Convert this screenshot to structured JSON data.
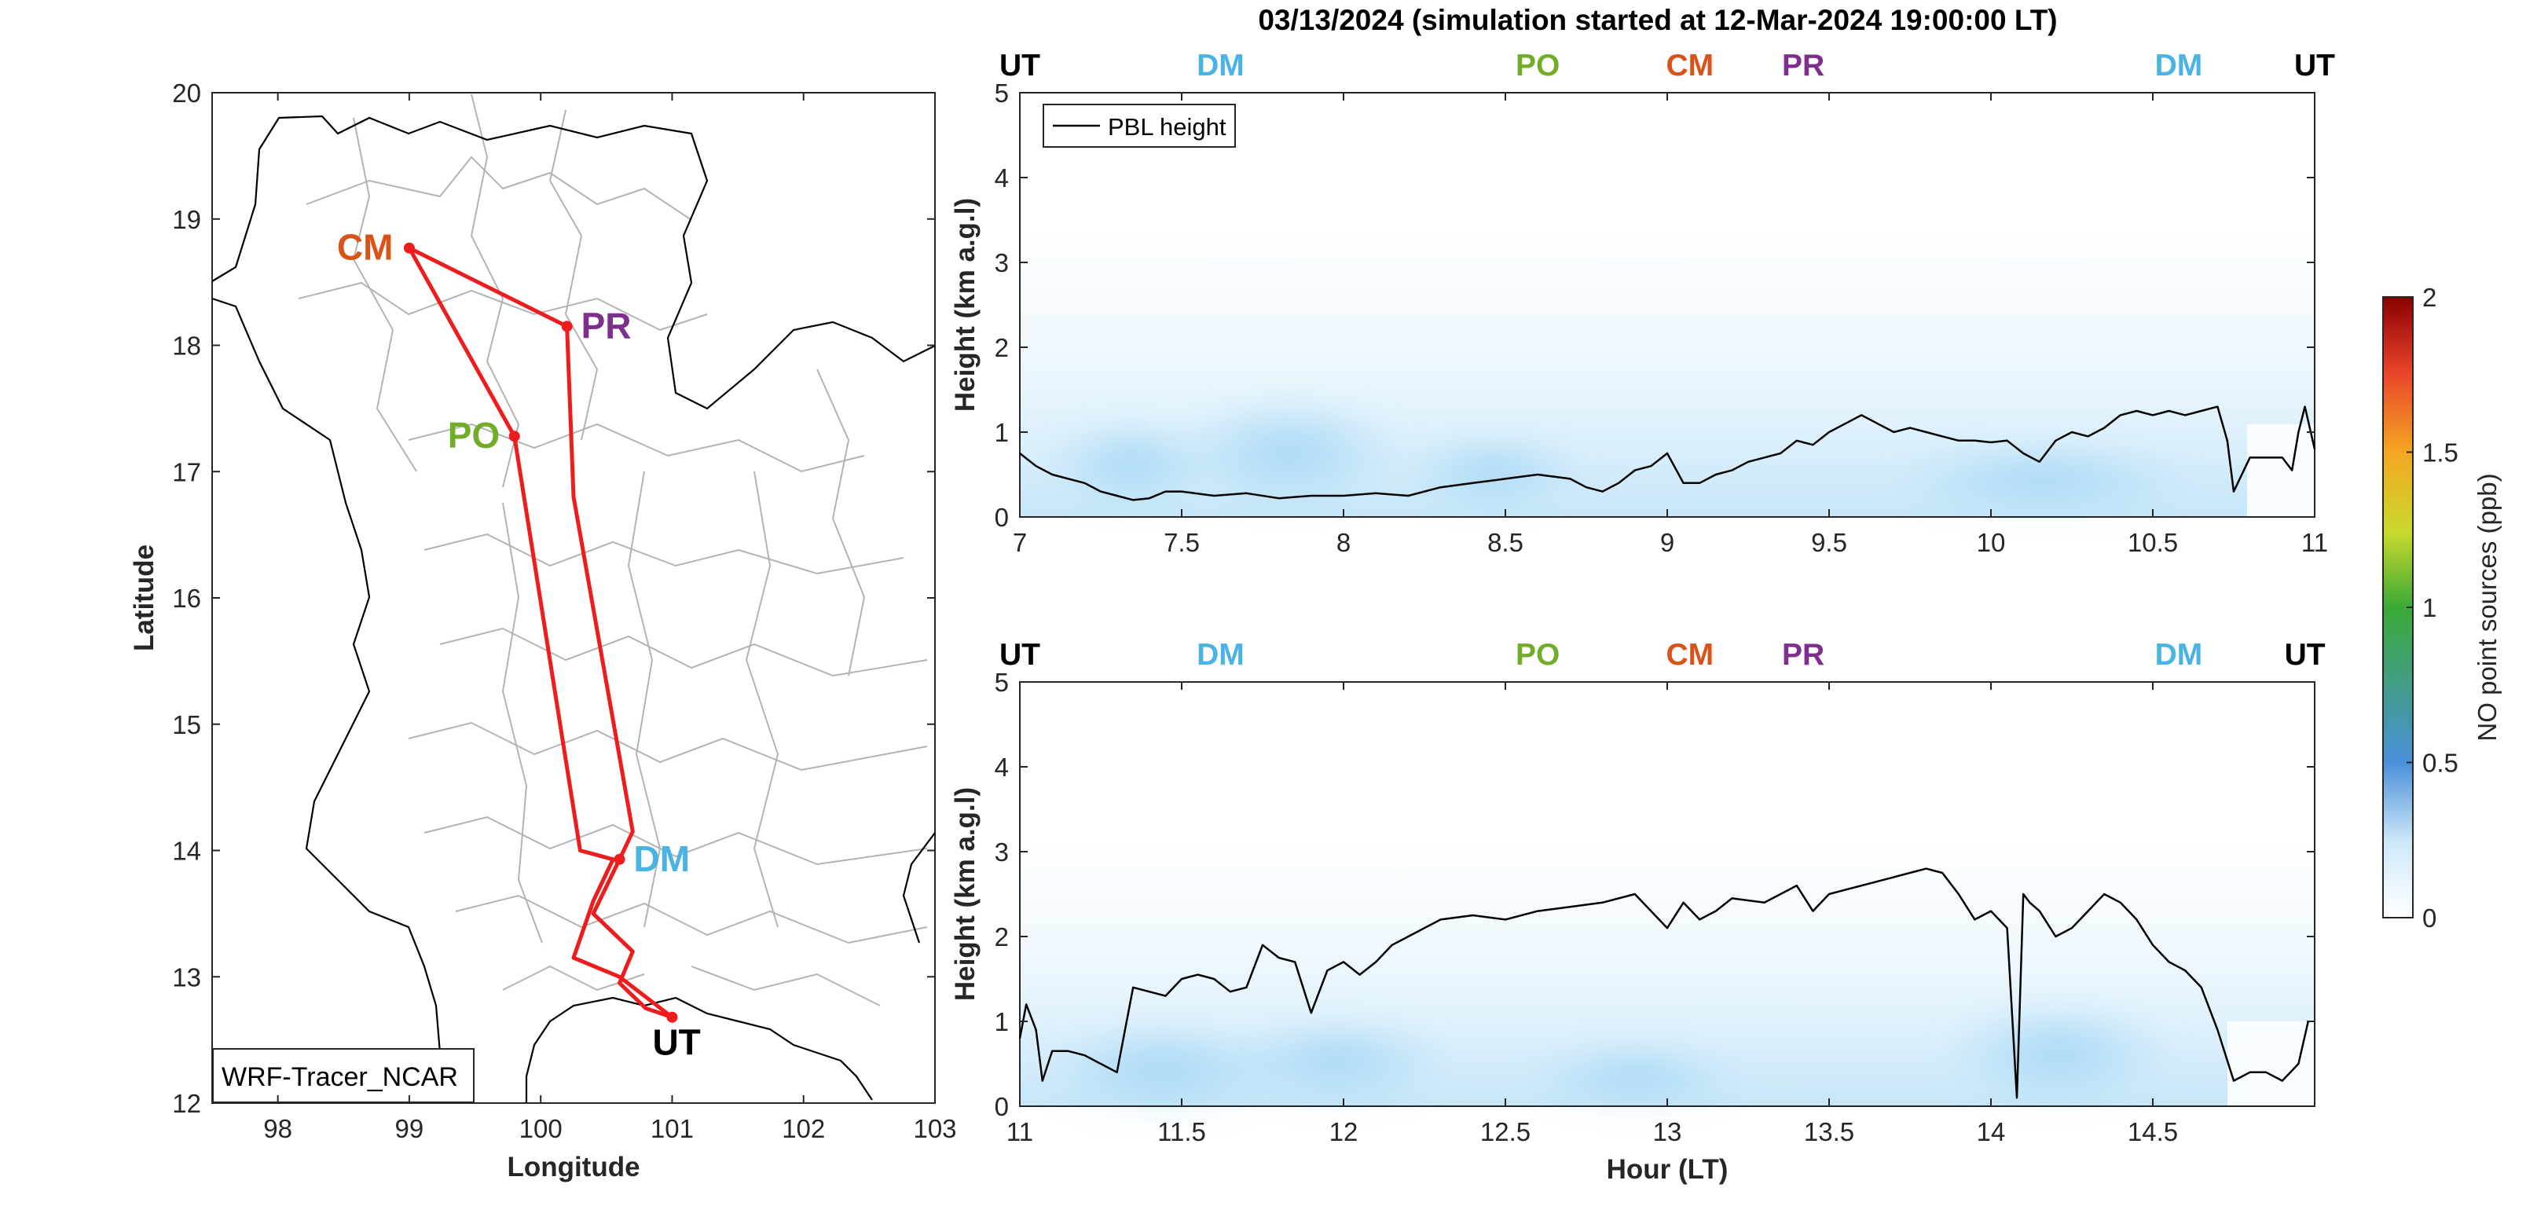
{
  "title": "03/13/2024 (simulation started at 12-Mar-2024 19:00:00 LT)",
  "colors": {
    "route": "#ee1c1c",
    "label": {
      "UT": "#000000",
      "DM": "#4ab3e6",
      "PO": "#72ad2a",
      "CM": "#d95319",
      "PR": "#7e2f8e"
    }
  },
  "map": {
    "xlabel": "Longitude",
    "ylabel": "Latitude",
    "xlim": [
      97.5,
      103
    ],
    "ylim": [
      12,
      20
    ],
    "xticks": [
      98,
      99,
      100,
      101,
      102,
      103
    ],
    "yticks": [
      12,
      13,
      14,
      15,
      16,
      17,
      18,
      19,
      20
    ],
    "model_label": "WRF-Tracer_NCAR",
    "locations": [
      {
        "name": "CM",
        "lon": 99.0,
        "lat": 18.77
      },
      {
        "name": "PR",
        "lon": 100.2,
        "lat": 18.15
      },
      {
        "name": "PO",
        "lon": 99.8,
        "lat": 17.28
      },
      {
        "name": "DM",
        "lon": 100.6,
        "lat": 13.93
      },
      {
        "name": "UT",
        "lon": 101.0,
        "lat": 12.68
      }
    ],
    "route": [
      [
        101.0,
        12.68
      ],
      [
        100.8,
        12.75
      ],
      [
        100.6,
        12.95
      ],
      [
        100.7,
        13.2
      ],
      [
        100.4,
        13.5
      ],
      [
        100.6,
        13.93
      ],
      [
        100.7,
        14.15
      ],
      [
        100.25,
        16.8
      ],
      [
        100.2,
        18.15
      ],
      [
        99.0,
        18.77
      ],
      [
        99.8,
        17.28
      ],
      [
        100.3,
        14.0
      ],
      [
        100.55,
        13.93
      ],
      [
        100.4,
        13.6
      ],
      [
        100.25,
        13.15
      ],
      [
        100.6,
        13.0
      ],
      [
        101.0,
        12.68
      ]
    ]
  },
  "chart_data": [
    {
      "type": "heatmap",
      "xlabel": "",
      "ylabel": "Height (km a.g.l)",
      "xlim": [
        7,
        11
      ],
      "ylim": [
        0,
        5
      ],
      "xticks": [
        "7",
        "7.5",
        "8",
        "8.5",
        "9",
        "9.5",
        "10",
        "10.5",
        "11"
      ],
      "yticks": [
        "0",
        "1",
        "2",
        "3",
        "4",
        "5"
      ],
      "legend": {
        "position": "top-left",
        "entries": [
          "PBL height"
        ]
      },
      "top_labels": [
        {
          "name": "UT",
          "x": 7.0
        },
        {
          "name": "DM",
          "x": 7.62
        },
        {
          "name": "PO",
          "x": 8.6
        },
        {
          "name": "CM",
          "x": 9.07
        },
        {
          "name": "PR",
          "x": 9.42
        },
        {
          "name": "DM",
          "x": 10.58
        },
        {
          "name": "UT",
          "x": 11.0
        }
      ],
      "series": [
        {
          "name": "PBL height",
          "x": [
            7.0,
            7.05,
            7.1,
            7.15,
            7.2,
            7.25,
            7.3,
            7.35,
            7.4,
            7.45,
            7.5,
            7.6,
            7.7,
            7.8,
            7.9,
            8.0,
            8.1,
            8.2,
            8.3,
            8.4,
            8.5,
            8.6,
            8.7,
            8.75,
            8.8,
            8.85,
            8.9,
            8.95,
            9.0,
            9.05,
            9.1,
            9.15,
            9.2,
            9.25,
            9.3,
            9.35,
            9.4,
            9.45,
            9.5,
            9.55,
            9.6,
            9.65,
            9.7,
            9.75,
            9.8,
            9.85,
            9.9,
            9.95,
            10.0,
            10.05,
            10.1,
            10.15,
            10.2,
            10.25,
            10.3,
            10.35,
            10.4,
            10.45,
            10.5,
            10.55,
            10.6,
            10.65,
            10.7,
            10.73,
            10.75,
            10.8,
            10.85,
            10.9,
            10.93,
            10.95,
            10.97,
            11.0
          ],
          "y": [
            0.75,
            0.6,
            0.5,
            0.45,
            0.4,
            0.3,
            0.25,
            0.2,
            0.22,
            0.3,
            0.3,
            0.25,
            0.28,
            0.22,
            0.25,
            0.25,
            0.28,
            0.25,
            0.35,
            0.4,
            0.45,
            0.5,
            0.45,
            0.35,
            0.3,
            0.4,
            0.55,
            0.6,
            0.75,
            0.4,
            0.4,
            0.5,
            0.55,
            0.65,
            0.7,
            0.75,
            0.9,
            0.85,
            1.0,
            1.1,
            1.2,
            1.1,
            1.0,
            1.05,
            1.0,
            0.95,
            0.9,
            0.9,
            0.88,
            0.9,
            0.75,
            0.65,
            0.9,
            1.0,
            0.95,
            1.05,
            1.2,
            1.25,
            1.2,
            1.25,
            1.2,
            1.25,
            1.3,
            0.9,
            0.3,
            0.7,
            0.7,
            0.7,
            0.55,
            1.0,
            1.3,
            0.8
          ]
        }
      ]
    },
    {
      "type": "heatmap",
      "xlabel": "Hour (LT)",
      "ylabel": "Height (km a.g.l)",
      "xlim": [
        11,
        15
      ],
      "ylim": [
        0,
        5
      ],
      "xticks": [
        "11",
        "11.5",
        "12",
        "12.5",
        "13",
        "13.5",
        "14",
        "14.5"
      ],
      "yticks": [
        "0",
        "1",
        "2",
        "3",
        "4",
        "5"
      ],
      "top_labels": [
        {
          "name": "UT",
          "x": 11.0
        },
        {
          "name": "DM",
          "x": 11.62
        },
        {
          "name": "PO",
          "x": 12.6
        },
        {
          "name": "CM",
          "x": 13.07
        },
        {
          "name": "PR",
          "x": 13.42
        },
        {
          "name": "DM",
          "x": 14.58
        },
        {
          "name": "UT",
          "x": 14.97
        }
      ],
      "series": [
        {
          "name": "PBL height",
          "x": [
            11.0,
            11.02,
            11.05,
            11.07,
            11.1,
            11.15,
            11.2,
            11.25,
            11.3,
            11.35,
            11.4,
            11.45,
            11.5,
            11.55,
            11.6,
            11.65,
            11.7,
            11.75,
            11.8,
            11.85,
            11.9,
            11.95,
            12.0,
            12.05,
            12.1,
            12.15,
            12.2,
            12.25,
            12.3,
            12.4,
            12.5,
            12.6,
            12.7,
            12.8,
            12.9,
            13.0,
            13.05,
            13.1,
            13.15,
            13.2,
            13.3,
            13.4,
            13.45,
            13.5,
            13.55,
            13.6,
            13.7,
            13.8,
            13.85,
            13.9,
            13.95,
            14.0,
            14.05,
            14.08,
            14.1,
            14.12,
            14.15,
            14.2,
            14.25,
            14.3,
            14.35,
            14.4,
            14.45,
            14.5,
            14.55,
            14.6,
            14.65,
            14.7,
            14.75,
            14.8,
            14.85,
            14.9,
            14.95,
            14.98
          ],
          "y": [
            0.8,
            1.2,
            0.9,
            0.3,
            0.65,
            0.65,
            0.6,
            0.5,
            0.4,
            1.4,
            1.35,
            1.3,
            1.5,
            1.55,
            1.5,
            1.35,
            1.4,
            1.9,
            1.75,
            1.7,
            1.1,
            1.6,
            1.7,
            1.55,
            1.7,
            1.9,
            2.0,
            2.1,
            2.2,
            2.25,
            2.2,
            2.3,
            2.35,
            2.4,
            2.5,
            2.1,
            2.4,
            2.2,
            2.3,
            2.45,
            2.4,
            2.6,
            2.3,
            2.5,
            2.55,
            2.6,
            2.7,
            2.8,
            2.75,
            2.5,
            2.2,
            2.3,
            2.1,
            0.1,
            2.5,
            2.4,
            2.3,
            2.0,
            2.1,
            2.3,
            2.5,
            2.4,
            2.2,
            1.9,
            1.7,
            1.6,
            1.4,
            0.9,
            0.3,
            0.4,
            0.4,
            0.3,
            0.5,
            1.0
          ]
        }
      ]
    }
  ],
  "colorbar": {
    "label": "NO point sources (ppb)",
    "ticks": [
      "0",
      "0.5",
      "1",
      "1.5",
      "2"
    ],
    "range": [
      0,
      2
    ]
  }
}
